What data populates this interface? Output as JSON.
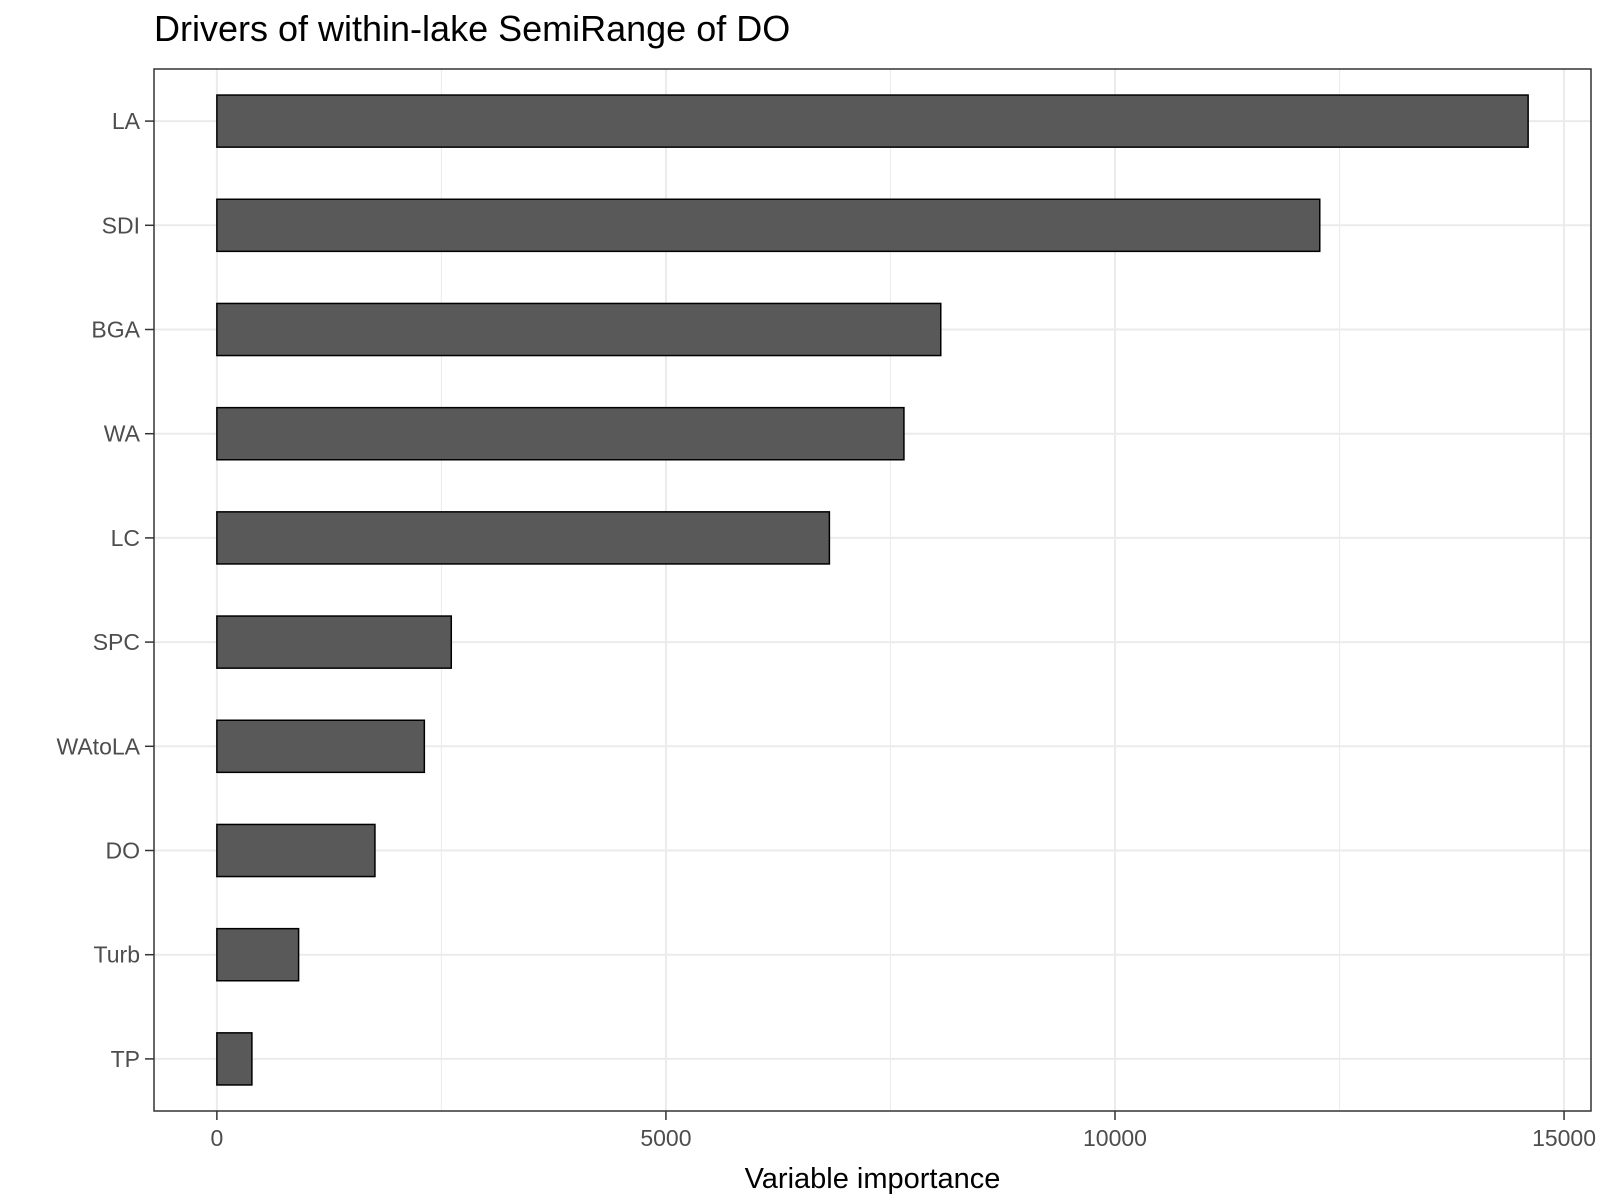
{
  "chart_data": {
    "type": "bar",
    "orientation": "horizontal",
    "title": "Drivers of within-lake SemiRange of DO",
    "xlabel": "Variable importance",
    "ylabel": "",
    "categories": [
      "LA",
      "SDI",
      "BGA",
      "WA",
      "LC",
      "SPC",
      "WAtoLA",
      "DO",
      "Turb",
      "TP"
    ],
    "values": [
      14600,
      12280,
      8060,
      7650,
      6820,
      2610,
      2310,
      1760,
      910,
      390
    ],
    "xlim": [
      -700,
      15300
    ],
    "xticks": [
      0,
      5000,
      10000,
      15000
    ],
    "xtick_labels": [
      "0",
      "5000",
      "10000",
      "15000"
    ],
    "grid": true,
    "legend": "none",
    "colors": {
      "bar_fill": "#595959",
      "bar_stroke": "#000000",
      "grid": "#ebebeb",
      "panel_border": "#333333",
      "tick_text": "#4d4d4d"
    }
  }
}
